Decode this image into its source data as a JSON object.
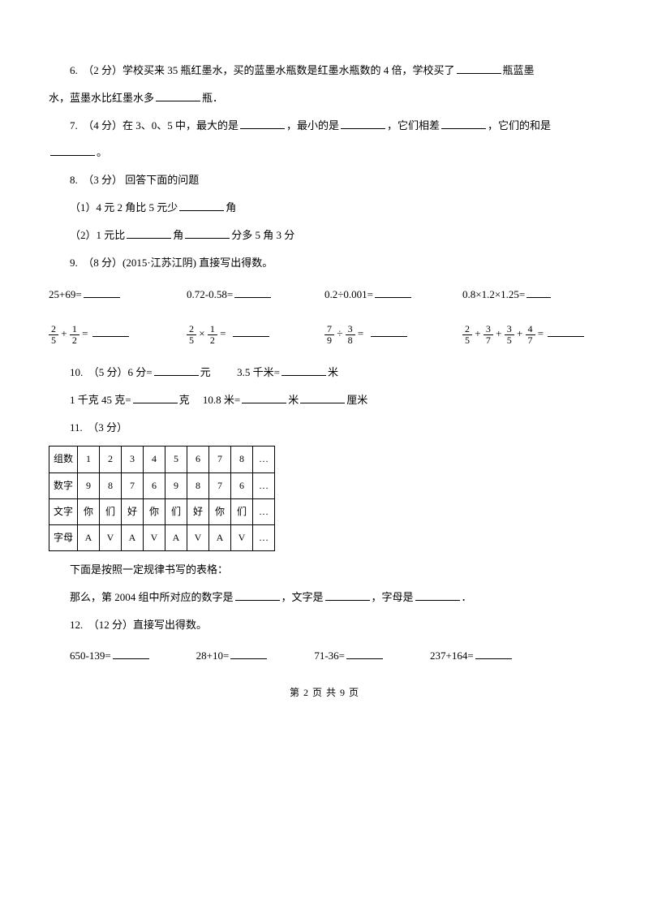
{
  "q6": {
    "text_a": "6.　（2 分）学校买来 35 瓶红墨水，买的蓝墨水瓶数是红墨水瓶数的 4 倍，学校买了",
    "text_b": "瓶蓝墨",
    "text_c": "水，蓝墨水比红墨水多",
    "text_d": "瓶．"
  },
  "q7": {
    "text_a": "7.　（4 分）在 3、0、5 中，最大的是",
    "text_b": "，最小的是",
    "text_c": "，它们相差",
    "text_d": "，它们的和是",
    "text_e": "。"
  },
  "q8": {
    "title": "8.　（3 分）  回答下面的问题",
    "p1_a": "（1）4 元 2 角比 5 元少",
    "p1_b": "角",
    "p2_a": "（2）1 元比",
    "p2_b": "角",
    "p2_c": "分多 5 角 3 分"
  },
  "q9": {
    "title": "9.　（8 分）(2015·江苏江阴) 直接写出得数。",
    "r1c1": "25+69=",
    "r1c2": "0.72-0.58=",
    "r1c3": "0.2÷0.001=",
    "r1c4": "0.8×1.2×1.25=",
    "f1": {
      "n": "2",
      "d": "5"
    },
    "f2": {
      "n": "1",
      "d": "2"
    },
    "f3": {
      "n": "2",
      "d": "5"
    },
    "f4": {
      "n": "1",
      "d": "2"
    },
    "f5": {
      "n": "7",
      "d": "9"
    },
    "f6": {
      "n": "3",
      "d": "8"
    },
    "f7": {
      "n": "2",
      "d": "5"
    },
    "f8": {
      "n": "3",
      "d": "7"
    },
    "f9": {
      "n": "3",
      "d": "5"
    },
    "f10": {
      "n": "4",
      "d": "7"
    }
  },
  "q10": {
    "line1_a": "10.　（5 分）6 分=",
    "line1_b": "元",
    "line1_c": "3.5 千米=",
    "line1_d": "米",
    "line2_a": "1 千克 45 克=",
    "line2_b": "克",
    "line2_c": "10.8 米=",
    "line2_d": "米",
    "line2_e": "厘米"
  },
  "q11": {
    "title": "11.　（3 分）",
    "table": {
      "rows": [
        [
          "组数",
          "1",
          "2",
          "3",
          "4",
          "5",
          "6",
          "7",
          "8",
          "…"
        ],
        [
          "数字",
          "9",
          "8",
          "7",
          "6",
          "9",
          "8",
          "7",
          "6",
          "…"
        ],
        [
          "文字",
          "你",
          "们",
          "好",
          "你",
          "们",
          "好",
          "你",
          "们",
          "…"
        ],
        [
          "字母",
          "A",
          "V",
          "A",
          "V",
          "A",
          "V",
          "A",
          "V",
          "…"
        ]
      ]
    },
    "below1": "下面是按照一定规律书写的表格：",
    "below2_a": "那么，第 2004 组中所对应的数字是",
    "below2_b": "，文字是",
    "below2_c": "，字母是",
    "below2_d": "．"
  },
  "q12": {
    "title": "12.　（12 分）直接写出得数。",
    "c1": "650-139=",
    "c2": "28+10=",
    "c3": "71-36=",
    "c4": "237+164="
  },
  "footer": "第 2 页 共 9 页"
}
